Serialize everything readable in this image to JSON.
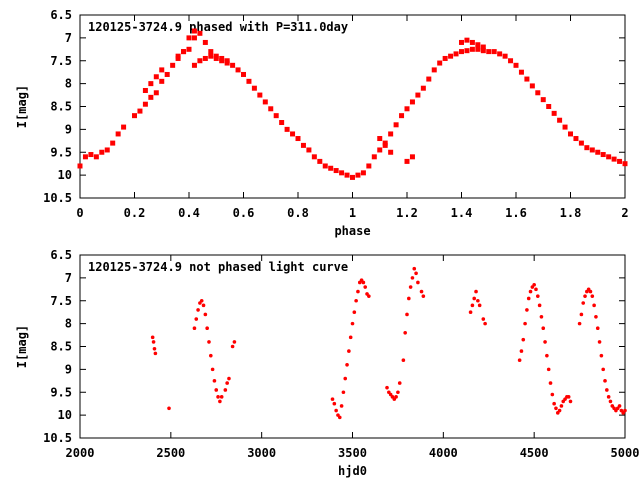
{
  "chart_data": [
    {
      "type": "scatter",
      "title": "120125-3724.9 phased with P=311.0day",
      "xlabel": "phase",
      "ylabel": "I[mag]",
      "xlim": [
        0,
        2
      ],
      "ylim": [
        10.5,
        6.5
      ],
      "y_inverted": true,
      "x_ticks": [
        "0",
        "0.2",
        "0.4",
        "0.6",
        "0.8",
        "1",
        "1.2",
        "1.4",
        "1.6",
        "1.8",
        "2"
      ],
      "y_ticks": [
        "6.5",
        "7",
        "7.5",
        "8",
        "8.5",
        "9",
        "9.5",
        "10",
        "10.5"
      ],
      "grid": false,
      "marker_color": "#ff0000",
      "series": [
        {
          "x": [
            0.0,
            0.02,
            0.04,
            0.06,
            0.08,
            0.1,
            0.12,
            0.14,
            0.16,
            0.2,
            0.22,
            0.24,
            0.26,
            0.28,
            0.3,
            0.32,
            0.34,
            0.36,
            0.38,
            0.4,
            0.42,
            0.44,
            0.46,
            0.48,
            0.5,
            0.52,
            0.54,
            0.56,
            0.58,
            0.6,
            0.62,
            0.64,
            0.66,
            0.68,
            0.7,
            0.72,
            0.74,
            0.76,
            0.78,
            0.8,
            0.82,
            0.84,
            0.86,
            0.88,
            0.9,
            0.92,
            0.94,
            0.96,
            0.98,
            1.0,
            1.02,
            1.04,
            1.06,
            1.08,
            1.1,
            1.12,
            1.14,
            1.16,
            1.18,
            1.2,
            1.22,
            1.24,
            1.26,
            1.28,
            1.3,
            1.32,
            1.34,
            1.36,
            1.38,
            1.4,
            1.42,
            1.44,
            1.46,
            1.48,
            1.5,
            1.52,
            1.54,
            1.56,
            1.58,
            1.6,
            1.62,
            1.64,
            1.66,
            1.68,
            1.7,
            1.72,
            1.74,
            1.76,
            1.78,
            1.8,
            1.82,
            1.84,
            1.86,
            1.88,
            1.9,
            1.92,
            1.94,
            1.96,
            1.98,
            2.0,
            0.24,
            0.26,
            0.28,
            0.3,
            0.42,
            0.44,
            0.46,
            0.48,
            0.5,
            0.52,
            0.54,
            1.4,
            1.42,
            1.44,
            1.46,
            1.48,
            1.2,
            1.22,
            1.1,
            1.12,
            1.14,
            0.36,
            0.38,
            0.4,
            0.42
          ],
          "y": [
            9.8,
            9.6,
            9.55,
            9.6,
            9.5,
            9.45,
            9.3,
            9.1,
            8.95,
            8.7,
            8.6,
            8.45,
            8.3,
            8.2,
            7.95,
            7.8,
            7.6,
            7.45,
            7.3,
            7.25,
            7.0,
            6.9,
            7.1,
            7.3,
            7.45,
            7.5,
            7.55,
            7.6,
            7.7,
            7.8,
            7.95,
            8.1,
            8.25,
            8.4,
            8.55,
            8.7,
            8.85,
            9.0,
            9.1,
            9.2,
            9.35,
            9.45,
            9.6,
            9.7,
            9.8,
            9.85,
            9.9,
            9.95,
            10.0,
            10.05,
            10.0,
            9.95,
            9.8,
            9.6,
            9.45,
            9.3,
            9.1,
            8.9,
            8.7,
            8.55,
            8.4,
            8.25,
            8.1,
            7.9,
            7.7,
            7.55,
            7.45,
            7.4,
            7.35,
            7.3,
            7.28,
            7.25,
            7.25,
            7.28,
            7.3,
            7.3,
            7.35,
            7.4,
            7.5,
            7.6,
            7.75,
            7.9,
            8.05,
            8.2,
            8.35,
            8.5,
            8.65,
            8.8,
            8.95,
            9.1,
            9.2,
            9.3,
            9.4,
            9.45,
            9.5,
            9.55,
            9.6,
            9.65,
            9.7,
            9.75,
            8.15,
            8.0,
            7.85,
            7.7,
            7.6,
            7.5,
            7.45,
            7.4,
            7.4,
            7.45,
            7.5,
            7.1,
            7.05,
            7.1,
            7.15,
            7.2,
            9.7,
            9.6,
            9.2,
            9.35,
            9.5,
            7.4,
            7.3,
            7.0,
            6.85
          ]
        }
      ]
    },
    {
      "type": "scatter",
      "title": "120125-3724.9 not phased light curve",
      "xlabel": "hjd0",
      "ylabel": "I[mag]",
      "xlim": [
        2000,
        5000
      ],
      "ylim": [
        10.5,
        6.5
      ],
      "y_inverted": true,
      "x_ticks": [
        "2000",
        "2500",
        "3000",
        "3500",
        "4000",
        "4500",
        "5000"
      ],
      "y_ticks": [
        "6.5",
        "7",
        "7.5",
        "8",
        "8.5",
        "9",
        "9.5",
        "10",
        "10.5"
      ],
      "grid": false,
      "marker_color": "#ff0000",
      "series": [
        {
          "x": [
            2400,
            2405,
            2410,
            2415,
            2490,
            2630,
            2640,
            2650,
            2660,
            2670,
            2680,
            2690,
            2700,
            2710,
            2720,
            2730,
            2740,
            2750,
            2760,
            2770,
            2780,
            2800,
            2810,
            2820,
            2840,
            2850,
            3390,
            3400,
            3410,
            3420,
            3430,
            3440,
            3450,
            3460,
            3470,
            3480,
            3490,
            3500,
            3510,
            3520,
            3530,
            3540,
            3550,
            3560,
            3570,
            3580,
            3590,
            3690,
            3700,
            3710,
            3720,
            3730,
            3740,
            3750,
            3760,
            3780,
            3790,
            3800,
            3810,
            3820,
            3830,
            3840,
            3850,
            3860,
            3880,
            3890,
            4150,
            4160,
            4170,
            4180,
            4190,
            4200,
            4220,
            4230,
            4420,
            4430,
            4440,
            4450,
            4460,
            4470,
            4480,
            4490,
            4500,
            4510,
            4520,
            4530,
            4540,
            4550,
            4560,
            4570,
            4580,
            4590,
            4600,
            4610,
            4620,
            4630,
            4640,
            4650,
            4660,
            4670,
            4680,
            4690,
            4700,
            4750,
            4760,
            4770,
            4780,
            4790,
            4800,
            4810,
            4820,
            4830,
            4840,
            4850,
            4860,
            4870,
            4880,
            4890,
            4900,
            4910,
            4920,
            4930,
            4940,
            4950,
            4960,
            4970,
            4980,
            4990,
            5000
          ],
          "y": [
            8.3,
            8.4,
            8.55,
            8.65,
            9.85,
            8.1,
            7.9,
            7.7,
            7.55,
            7.5,
            7.6,
            7.8,
            8.1,
            8.4,
            8.7,
            9.0,
            9.25,
            9.45,
            9.6,
            9.7,
            9.6,
            9.45,
            9.3,
            9.2,
            8.5,
            8.4,
            9.65,
            9.75,
            9.9,
            10.0,
            10.05,
            9.8,
            9.5,
            9.2,
            8.9,
            8.6,
            8.3,
            8.0,
            7.75,
            7.5,
            7.3,
            7.1,
            7.05,
            7.1,
            7.2,
            7.35,
            7.4,
            9.4,
            9.5,
            9.55,
            9.6,
            9.65,
            9.6,
            9.5,
            9.3,
            8.8,
            8.2,
            7.8,
            7.45,
            7.2,
            7.0,
            6.8,
            6.9,
            7.1,
            7.3,
            7.4,
            7.75,
            7.6,
            7.45,
            7.3,
            7.5,
            7.6,
            7.9,
            8.0,
            8.8,
            8.6,
            8.35,
            8.0,
            7.7,
            7.45,
            7.3,
            7.2,
            7.15,
            7.25,
            7.4,
            7.6,
            7.85,
            8.1,
            8.4,
            8.7,
            9.0,
            9.3,
            9.55,
            9.75,
            9.85,
            9.95,
            9.9,
            9.8,
            9.7,
            9.65,
            9.6,
            9.6,
            9.7,
            8.0,
            7.8,
            7.55,
            7.4,
            7.3,
            7.25,
            7.3,
            7.4,
            7.6,
            7.85,
            8.1,
            8.4,
            8.7,
            9.0,
            9.25,
            9.45,
            9.6,
            9.7,
            9.8,
            9.85,
            9.9,
            9.85,
            9.8,
            9.9,
            9.95,
            9.9
          ]
        }
      ]
    }
  ]
}
